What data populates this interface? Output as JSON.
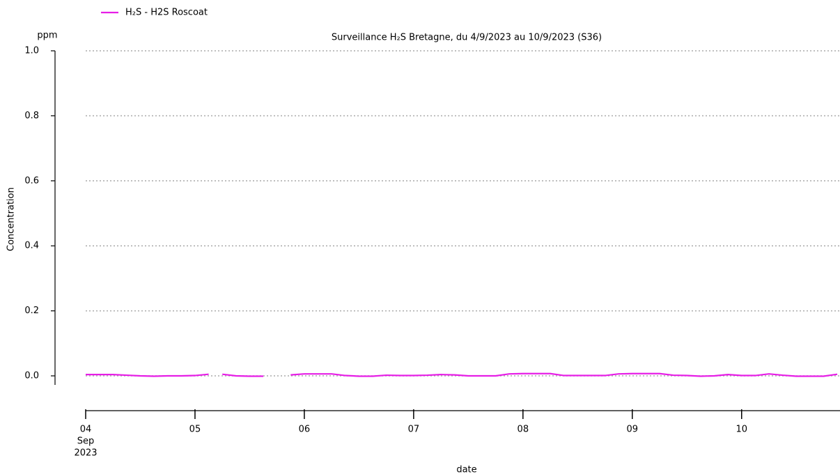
{
  "chart_data": {
    "type": "line",
    "title": "Surveillance H₂S Bretagne, du 4/9/2023 au 10/9/2023 (S36)",
    "y_unit": "ppm",
    "y_label": "Concentration",
    "x_label": "date",
    "x_month": "Sep",
    "x_year": "2023",
    "x": [
      4.0,
      4.125,
      4.25,
      4.375,
      4.5,
      4.625,
      4.75,
      4.875,
      5.0,
      5.125,
      5.19,
      5.25,
      5.375,
      5.5,
      5.625,
      5.75,
      5.875,
      6.0,
      6.125,
      6.25,
      6.375,
      6.5,
      6.625,
      6.75,
      6.875,
      7.0,
      7.125,
      7.25,
      7.375,
      7.5,
      7.625,
      7.75,
      7.875,
      8.0,
      8.125,
      8.25,
      8.375,
      8.5,
      8.625,
      8.75,
      8.875,
      9.0,
      9.125,
      9.25,
      9.375,
      9.5,
      9.625,
      9.75,
      9.875,
      10.0,
      10.125,
      10.25,
      10.375,
      10.5,
      10.625,
      10.75,
      10.875
    ],
    "series": [
      {
        "name": "H₂S - H2S Roscoat",
        "color": "#e61ee6",
        "values": [
          0.004,
          0.004,
          0.004,
          0.002,
          0.0,
          -0.001,
          0.0,
          0.0,
          0.001,
          0.005,
          null,
          0.005,
          0.0,
          -0.001,
          -0.001,
          null,
          0.003,
          0.006,
          0.006,
          0.006,
          0.001,
          -0.001,
          -0.001,
          0.002,
          0.001,
          0.001,
          0.002,
          0.004,
          0.003,
          0.0,
          0.0,
          0.0,
          0.006,
          0.007,
          0.007,
          0.007,
          0.001,
          0.001,
          0.001,
          0.001,
          0.006,
          0.007,
          0.007,
          0.007,
          0.002,
          0.001,
          -0.001,
          0.0,
          0.004,
          0.001,
          0.001,
          0.006,
          0.002,
          -0.001,
          -0.001,
          -0.001,
          0.005
        ]
      }
    ],
    "xlim": [
      4.0,
      10.9
    ],
    "xticks": [
      {
        "value": 4,
        "label": "04"
      },
      {
        "value": 5,
        "label": "05"
      },
      {
        "value": 6,
        "label": "06"
      },
      {
        "value": 7,
        "label": "07"
      },
      {
        "value": 8,
        "label": "08"
      },
      {
        "value": 9,
        "label": "09"
      },
      10
    ],
    "ylim": [
      0.0,
      1.0
    ],
    "yticks": [
      {
        "value": 0,
        "label": "0.0"
      },
      0.2,
      0.4,
      0.6,
      0.8,
      {
        "value": 1,
        "label": "1.0"
      }
    ],
    "grid": true,
    "legend": "top-left"
  }
}
